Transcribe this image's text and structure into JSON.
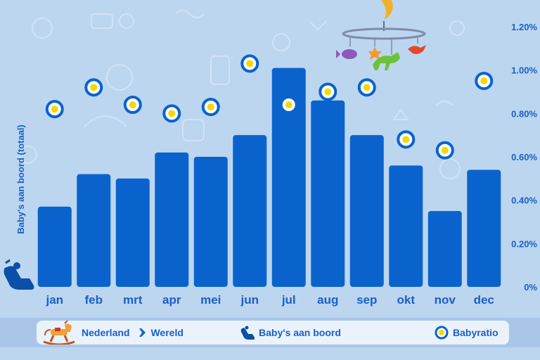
{
  "chart_data": {
    "type": "bar",
    "title": "",
    "ylabel": "Baby's aan boord (totaal)",
    "categories": [
      "jan",
      "feb",
      "mrt",
      "apr",
      "mei",
      "jun",
      "jul",
      "aug",
      "sep",
      "okt",
      "nov",
      "dec"
    ],
    "series": [
      {
        "name": "Baby's aan boord",
        "values": [
          0.37,
          0.52,
          0.5,
          0.62,
          0.6,
          0.7,
          1.01,
          0.86,
          0.7,
          0.56,
          0.35,
          0.54
        ]
      },
      {
        "name": "Babyratio",
        "values": [
          0.82,
          0.92,
          0.84,
          0.8,
          0.83,
          1.03,
          0.84,
          0.9,
          0.92,
          0.68,
          0.63,
          0.95
        ]
      }
    ],
    "y2_ticks": [
      "0%",
      "0.20%",
      "0.40%",
      "0.60%",
      "0.80%",
      "1.00%",
      "1.20%"
    ],
    "ylim": [
      0,
      1.2
    ],
    "grid": false,
    "legend_position": "bottom"
  },
  "legend": {
    "route_from": "Nederland",
    "route_to": "Wereld",
    "bars_label": "Baby's aan boord",
    "ratio_label": "Babyratio"
  },
  "colors": {
    "bar": "#0a63cc",
    "text": "#1a5fc8",
    "marker_ring": "#0a63cc",
    "marker_fill": "#ffffff",
    "marker_center": "#f3d70f",
    "background": "#bcd6f0"
  },
  "icons": {
    "legend_route": "rocking-horse-icon",
    "legend_arrow": "airplane-icon",
    "legend_bars": "baby-seat-icon",
    "axis_icon": "baby-seat-icon",
    "decoration": "baby-mobile-icon"
  }
}
